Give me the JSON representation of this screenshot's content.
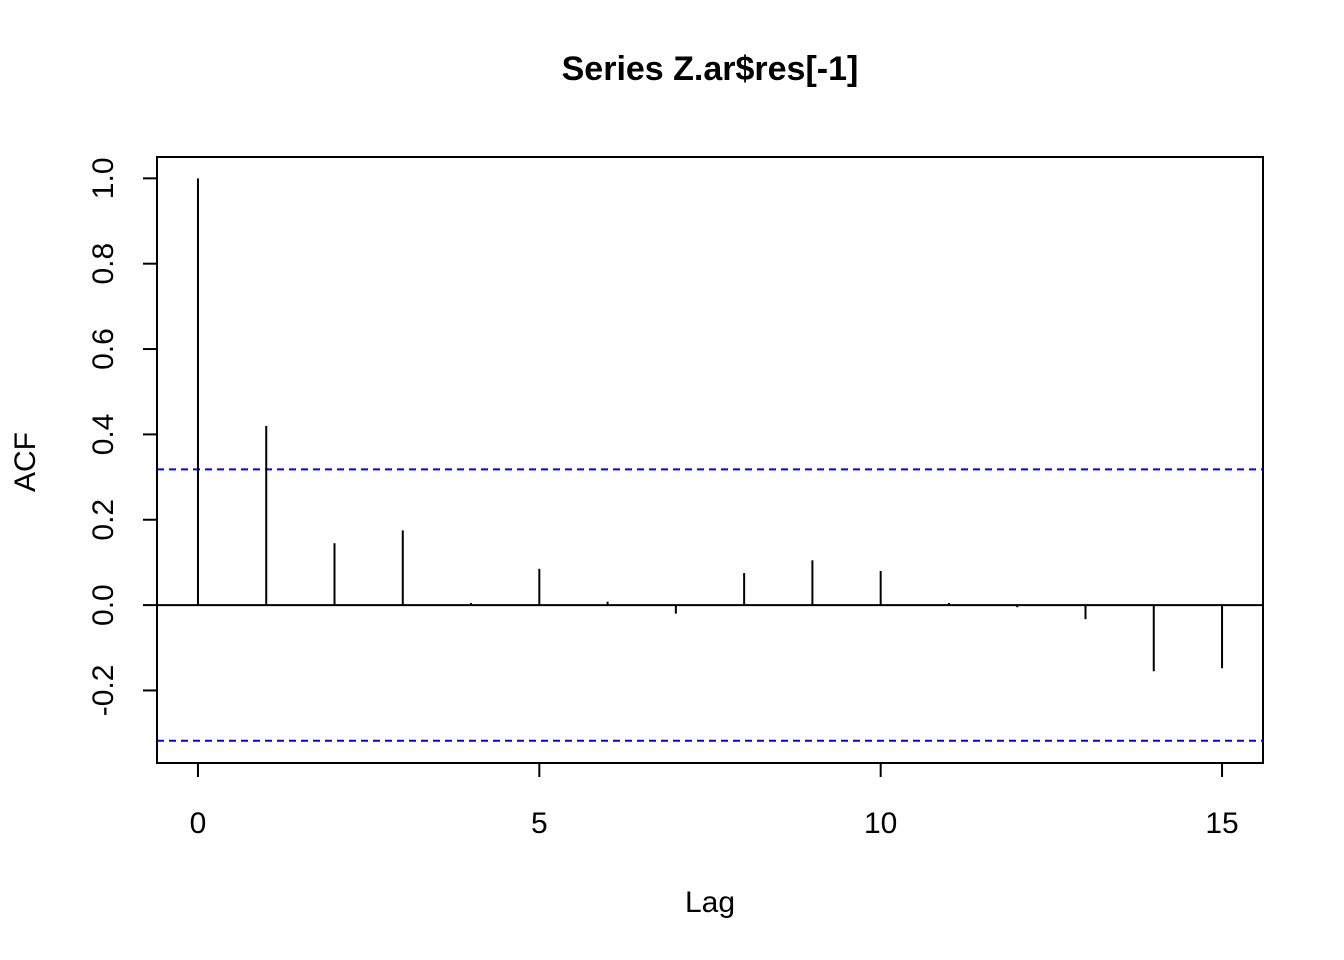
{
  "chart_data": {
    "type": "bar",
    "title": "Series  Z.ar$res[-1]",
    "xlabel": "Lag",
    "ylabel": "ACF",
    "xlim": [
      -0.6,
      15.6
    ],
    "ylim": [
      -0.37,
      1.05
    ],
    "x_ticks": [
      0,
      5,
      10,
      15
    ],
    "y_ticks": [
      -0.2,
      0.0,
      0.2,
      0.4,
      0.6,
      0.8,
      1.0
    ],
    "x_tick_labels": [
      "0",
      "5",
      "10",
      "15"
    ],
    "y_tick_labels": [
      "-0.2",
      "0.0",
      "0.2",
      "0.4",
      "0.6",
      "0.8",
      "1.0"
    ],
    "lags": [
      0,
      1,
      2,
      3,
      4,
      5,
      6,
      7,
      8,
      9,
      10,
      11,
      12,
      13,
      14,
      15
    ],
    "values": [
      1.0,
      0.42,
      0.145,
      0.175,
      0.005,
      0.085,
      0.008,
      -0.02,
      0.075,
      0.105,
      0.08,
      0.005,
      -0.005,
      -0.033,
      -0.155,
      -0.148
    ],
    "confidence_limits": [
      0.318,
      -0.318
    ],
    "confidence_line_color": "#0000FF",
    "bar_color": "#000000",
    "grid": false
  }
}
